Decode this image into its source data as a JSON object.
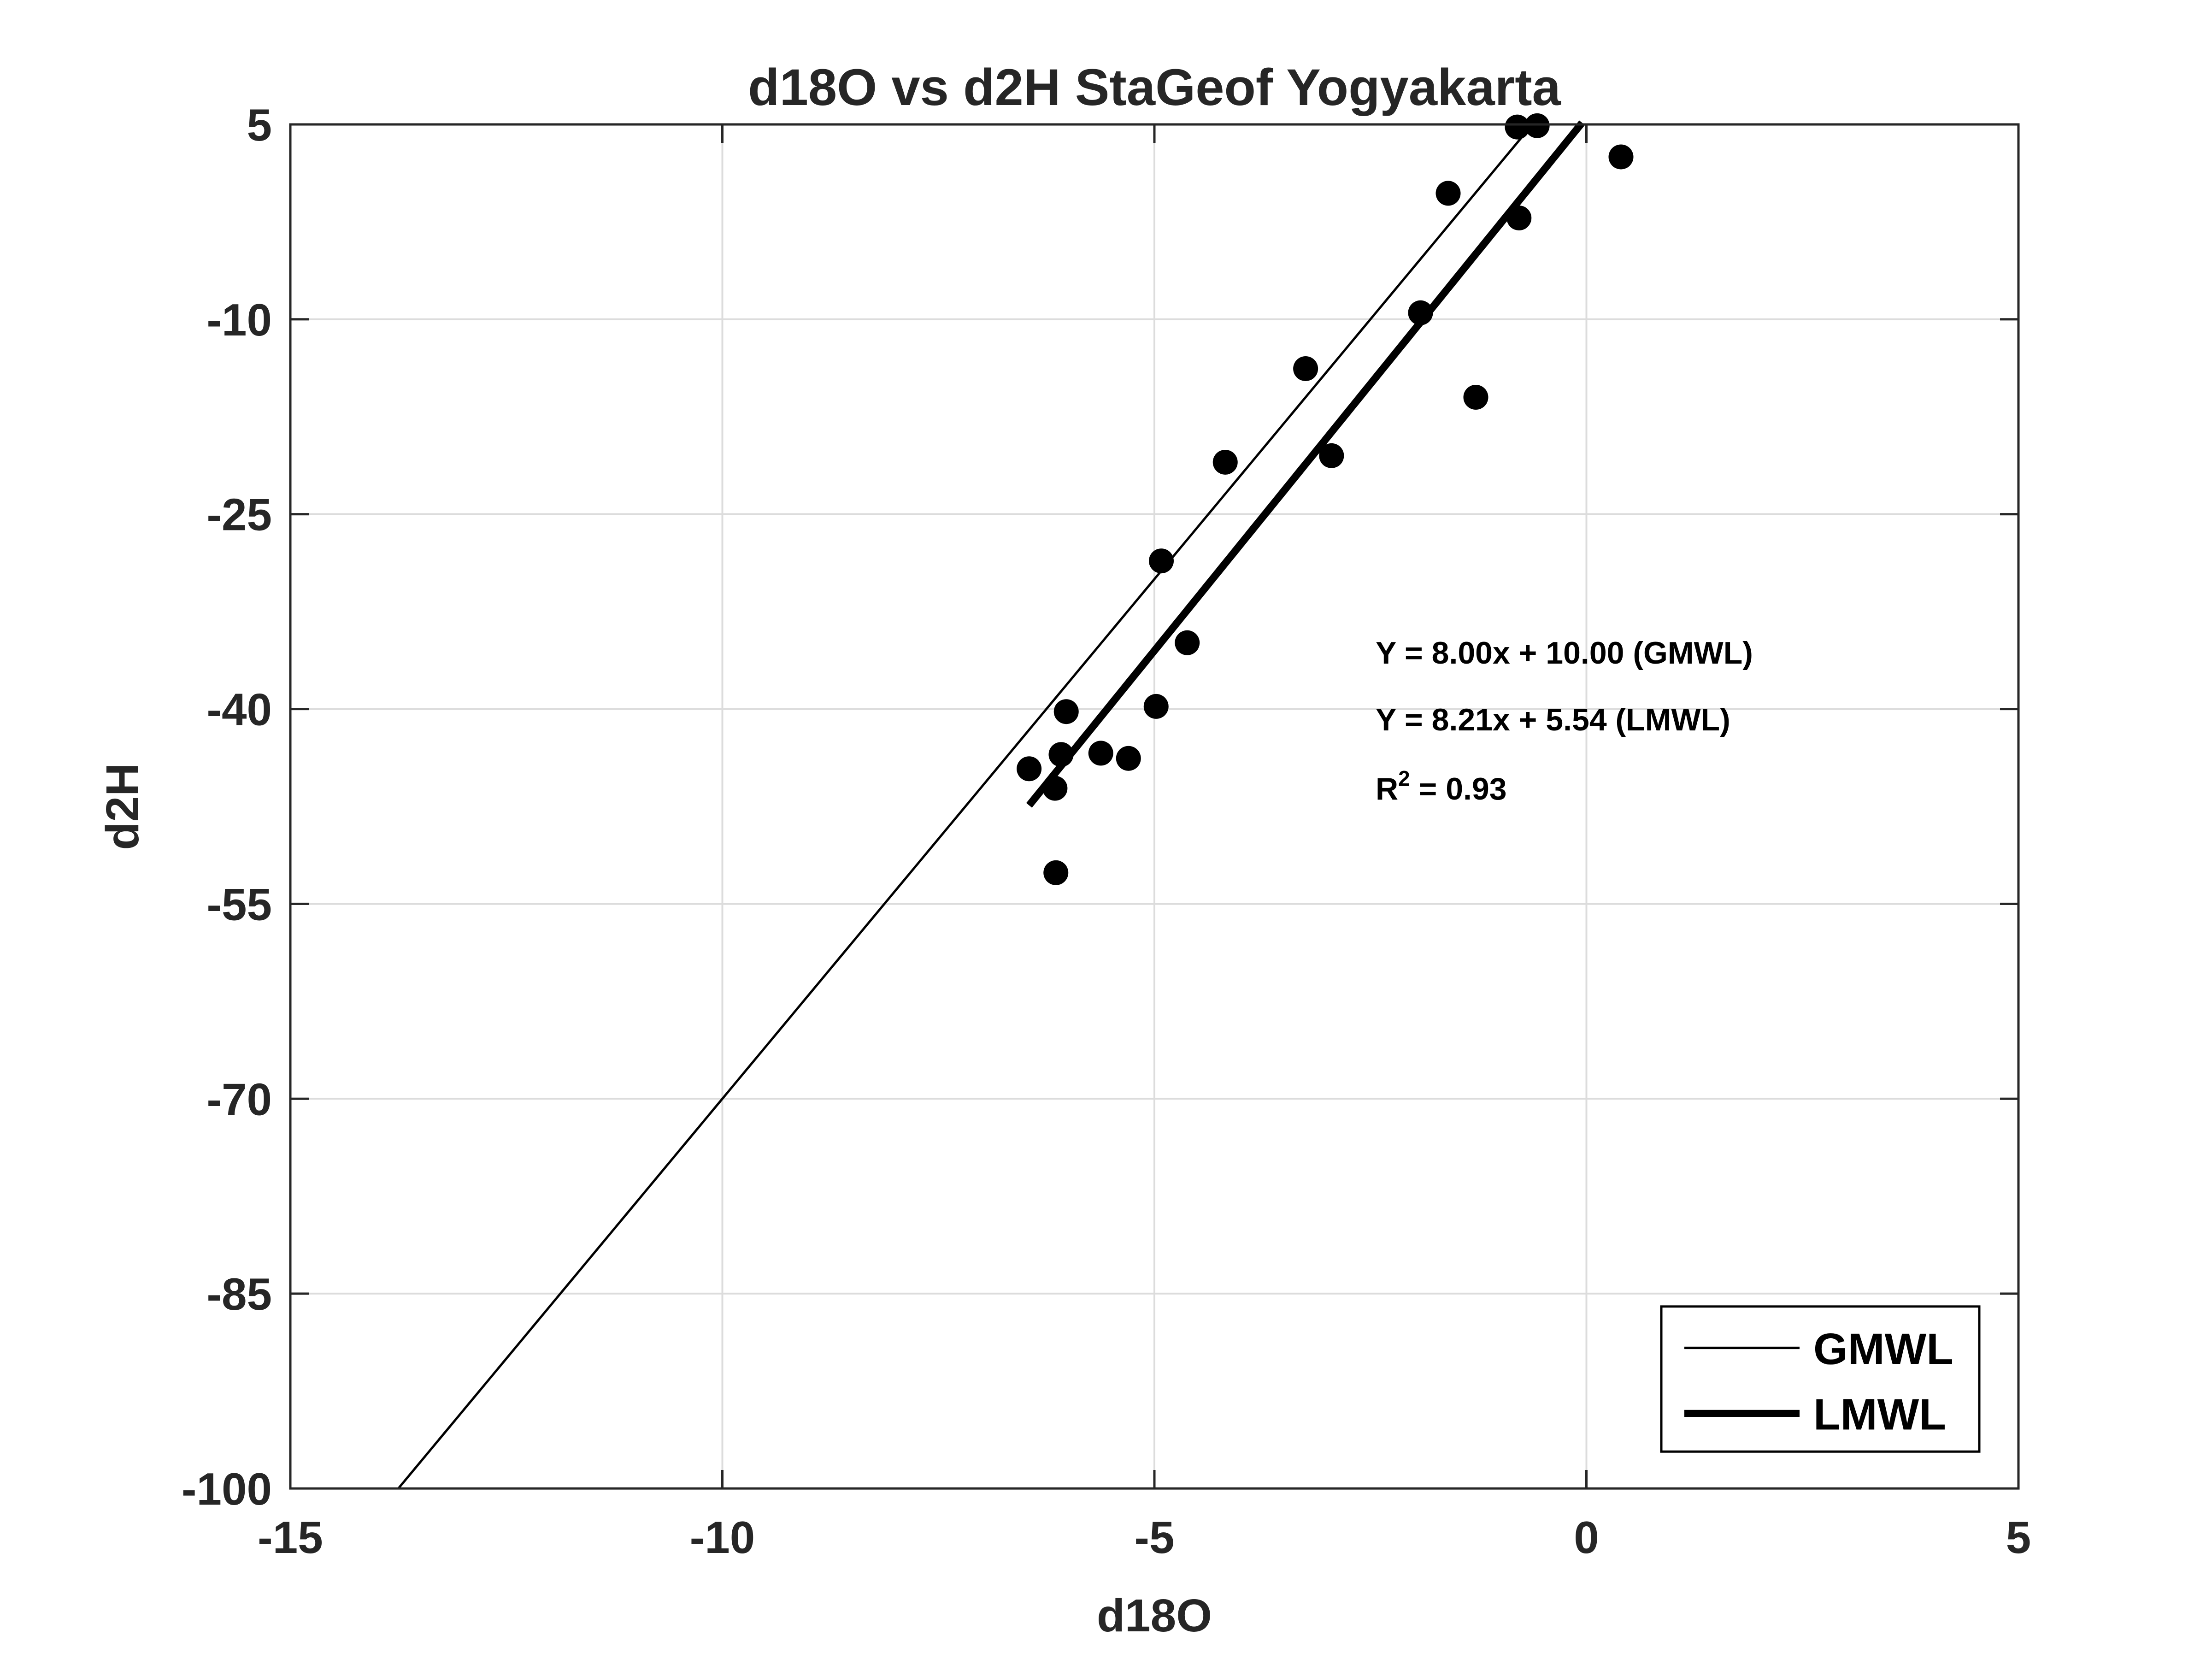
{
  "chart_data": {
    "type": "scatter",
    "title": "d18O vs d2H StaGeof Yogyakarta",
    "xlabel": "d18O",
    "ylabel": "d2H",
    "xlim": [
      -15,
      5
    ],
    "ylim": [
      -100,
      5
    ],
    "xticks": [
      -15,
      -10,
      -5,
      0,
      5
    ],
    "xtick_labels": [
      "-15",
      "-10",
      "-5",
      "0",
      "5"
    ],
    "yticks": [
      5,
      -10,
      -25,
      -40,
      -55,
      -70,
      -85,
      -100
    ],
    "ytick_labels": [
      "5",
      "-10",
      "-25",
      "-40",
      "-55",
      "-70",
      "-85",
      "-100"
    ],
    "grid": true,
    "legend_position": "bottom-right",
    "points": {
      "x": [
        -0.8,
        -0.57,
        0.4,
        -1.6,
        -0.78,
        -1.92,
        -3.25,
        -1.28,
        -4.18,
        -2.95,
        -4.92,
        -4.62,
        -6.02,
        -4.98,
        -6.08,
        -5.62,
        -5.3,
        -6.45,
        -6.15,
        -6.14
      ],
      "y": [
        4.8,
        4.9,
        2.5,
        -0.3,
        -2.2,
        -9.5,
        -13.8,
        -16.0,
        -21.0,
        -20.5,
        -28.6,
        -34.9,
        -40.2,
        -39.8,
        -43.5,
        -43.4,
        -43.8,
        -44.6,
        -46.1,
        -52.6
      ]
    },
    "lines": [
      {
        "name": "GMWL",
        "slope": 8.0,
        "intercept": 10.0,
        "x_range": [
          -13.75,
          -0.625
        ],
        "color": "#000000",
        "width": "thin"
      },
      {
        "name": "LMWL",
        "slope": 8.21,
        "intercept": 5.54,
        "x_range": [
          -6.45,
          -0.05
        ],
        "color": "#000000",
        "width": "thick"
      }
    ],
    "annotations": {
      "gmwl_equation": "Y = 8.00x + 10.00 (GMWL)",
      "lmwl_equation": "Y = 8.21x + 5.54 (LMWL)",
      "r2_prefix": "R",
      "r2_superscript": "2",
      "r2_value": " = 0.93"
    },
    "legend": [
      "GMWL",
      "LMWL"
    ]
  }
}
